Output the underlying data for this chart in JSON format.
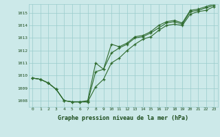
{
  "background_color": "#cce9e9",
  "grid_color": "#99cccc",
  "line_color": "#2d6a2d",
  "text_color": "#1a4a1a",
  "title": "Graphe pression niveau de la mer (hPa)",
  "x_labels": [
    "0",
    "1",
    "2",
    "3",
    "4",
    "5",
    "6",
    "7",
    "8",
    "9",
    "10",
    "11",
    "12",
    "13",
    "14",
    "15",
    "16",
    "17",
    "18",
    "19",
    "20",
    "21",
    "22",
    "23"
  ],
  "xlim": [
    -0.5,
    23.5
  ],
  "ylim": [
    1007.5,
    1015.7
  ],
  "yticks": [
    1008,
    1009,
    1010,
    1011,
    1012,
    1013,
    1014,
    1015
  ],
  "line1": [
    1009.8,
    1009.7,
    1009.4,
    1008.9,
    1008.0,
    1007.9,
    1007.9,
    1007.9,
    1009.1,
    1009.7,
    1011.0,
    1011.4,
    1012.0,
    1012.5,
    1012.9,
    1013.1,
    1013.6,
    1014.0,
    1014.1,
    1014.0,
    1014.9,
    1015.1,
    1015.2,
    1015.5
  ],
  "line2": [
    1009.8,
    1009.7,
    1009.4,
    1008.9,
    1008.0,
    1007.9,
    1007.9,
    1007.9,
    1010.3,
    1010.5,
    1011.8,
    1012.2,
    1012.5,
    1013.0,
    1013.1,
    1013.4,
    1013.8,
    1014.2,
    1014.3,
    1014.1,
    1015.1,
    1015.2,
    1015.4,
    1015.6
  ],
  "line3": [
    1009.8,
    1009.7,
    1009.4,
    1008.9,
    1008.0,
    1007.9,
    1007.9,
    1008.0,
    1011.0,
    1010.5,
    1012.5,
    1012.3,
    1012.6,
    1013.1,
    1013.2,
    1013.5,
    1014.0,
    1014.3,
    1014.4,
    1014.2,
    1015.2,
    1015.3,
    1015.5,
    1015.7
  ]
}
